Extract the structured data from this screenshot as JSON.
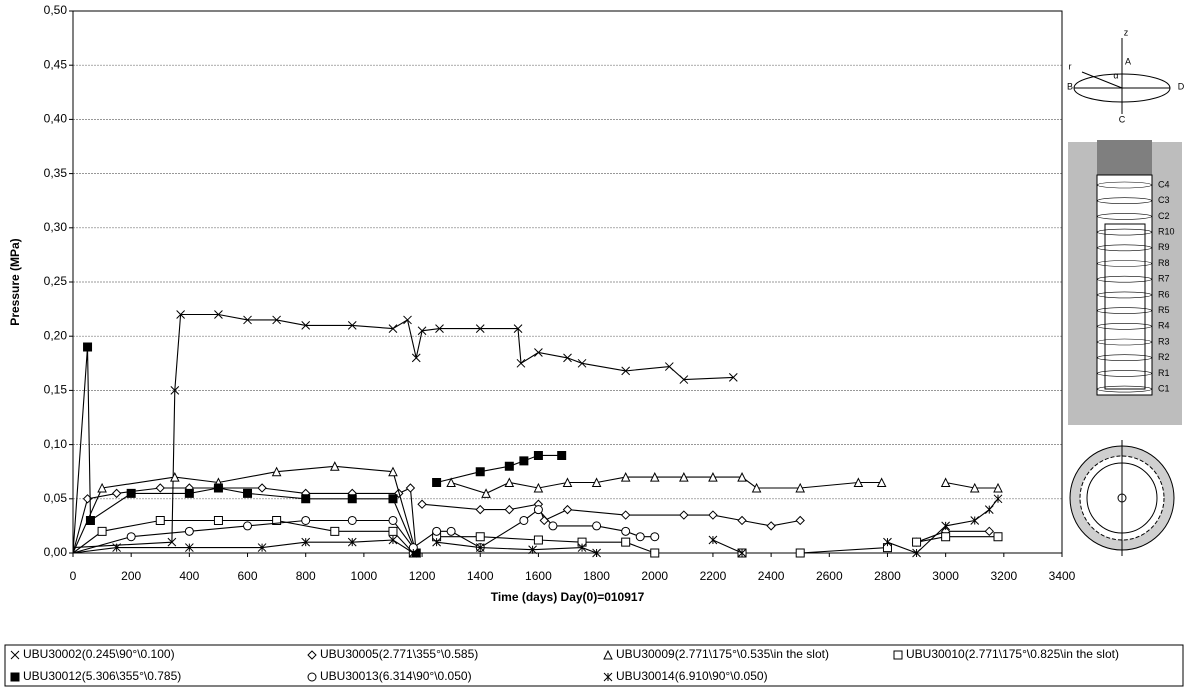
{
  "chart_data": {
    "type": "line",
    "xlabel": "Time  (days)  Day(0)=010917",
    "ylabel": "Pressure (MPa)",
    "xlim": [
      0,
      3400
    ],
    "ylim": [
      0,
      0.5
    ],
    "xticks": [
      0,
      200,
      400,
      600,
      800,
      1000,
      1200,
      1400,
      1600,
      1800,
      2000,
      2200,
      2400,
      2600,
      2800,
      3000,
      3200,
      3400
    ],
    "yticks": [
      {
        "value": 0,
        "label": "0,00"
      },
      {
        "value": 0.05,
        "label": "0,05"
      },
      {
        "value": 0.1,
        "label": "0,10"
      },
      {
        "value": 0.15,
        "label": "0,15"
      },
      {
        "value": 0.2,
        "label": "0,20"
      },
      {
        "value": 0.25,
        "label": "0,25"
      },
      {
        "value": 0.3,
        "label": "0,30"
      },
      {
        "value": 0.35,
        "label": "0,35"
      },
      {
        "value": 0.4,
        "label": "0,40"
      },
      {
        "value": 0.45,
        "label": "0,45"
      },
      {
        "value": 0.5,
        "label": "0,50"
      }
    ],
    "grid": true,
    "legend": "bottom",
    "series": [
      {
        "name": "UBU30002(0.245\\90°\\0.100)",
        "color": "#000000",
        "marker": "x",
        "x": [
          0,
          340,
          350,
          370,
          500,
          600,
          700,
          800,
          960,
          1100,
          1150,
          1180,
          1200,
          1260,
          1400,
          1530,
          1540,
          1600,
          1700,
          1750,
          1900,
          2050,
          2100,
          2270
        ],
        "values": [
          0.005,
          0.01,
          0.15,
          0.22,
          0.22,
          0.215,
          0.215,
          0.21,
          0.21,
          0.207,
          0.215,
          0.18,
          0.205,
          0.207,
          0.207,
          0.207,
          0.175,
          0.185,
          0.18,
          0.175,
          0.168,
          0.172,
          0.16,
          0.162
        ]
      },
      {
        "name": "UBU30005(2.771\\355°\\0.585)",
        "color": "#000000",
        "marker": "diamond",
        "x": [
          0,
          50,
          150,
          300,
          400,
          650,
          800,
          960,
          1120,
          1160,
          1180,
          null,
          1200,
          1400,
          1500,
          1600,
          1620,
          1700,
          1900,
          2100,
          2200,
          2300,
          2400,
          2500,
          null,
          2900,
          3000,
          3150
        ],
        "values": [
          0,
          0.05,
          0.055,
          0.06,
          0.06,
          0.06,
          0.055,
          0.055,
          0.055,
          0.06,
          0,
          null,
          0.045,
          0.04,
          0.04,
          0.045,
          0.03,
          0.04,
          0.035,
          0.035,
          0.035,
          0.03,
          0.025,
          0.03,
          null,
          0.01,
          0.02,
          0.02
        ]
      },
      {
        "name": "UBU30009(2.771\\175°\\0.535\\in the slot)",
        "color": "#000000",
        "marker": "triangle",
        "x": [
          0,
          100,
          350,
          500,
          700,
          900,
          1100,
          1180,
          null,
          1300,
          1420,
          1500,
          1600,
          1700,
          1800,
          1900,
          2000,
          2100,
          2200,
          2300,
          2350,
          2500,
          2700,
          2780,
          null,
          3000,
          3100,
          3180
        ],
        "values": [
          0,
          0.06,
          0.07,
          0.065,
          0.075,
          0.08,
          0.075,
          0,
          null,
          0.065,
          0.055,
          0.065,
          0.06,
          0.065,
          0.065,
          0.07,
          0.07,
          0.07,
          0.07,
          0.07,
          0.06,
          0.06,
          0.065,
          0.065,
          null,
          0.065,
          0.06,
          0.06
        ]
      },
      {
        "name": "UBU30010(2.771\\175°\\0.825\\in the slot)",
        "color": "#000000",
        "marker": "square",
        "x": [
          0,
          100,
          300,
          500,
          700,
          900,
          1100,
          1170,
          null,
          1250,
          1400,
          1600,
          1750,
          1900,
          2000,
          null,
          2300,
          2500,
          2800,
          null,
          2900,
          3000,
          3180
        ],
        "values": [
          0,
          0.02,
          0.03,
          0.03,
          0.03,
          0.02,
          0.02,
          0,
          null,
          0.015,
          0.015,
          0.012,
          0.01,
          0.01,
          0,
          null,
          0,
          0,
          0.005,
          null,
          0.01,
          0.015,
          0.015
        ]
      },
      {
        "name": "UBU30012(5.306\\355°\\0.785)",
        "color": "#000000",
        "marker": "filled-square",
        "x": [
          0,
          50,
          60,
          200,
          400,
          500,
          600,
          800,
          960,
          1100,
          1180,
          null,
          1250,
          1400,
          1500,
          1550,
          1600,
          1680
        ],
        "values": [
          0,
          0.19,
          0.03,
          0.055,
          0.055,
          0.06,
          0.055,
          0.05,
          0.05,
          0.05,
          0,
          null,
          0.065,
          0.075,
          0.08,
          0.085,
          0.09,
          0.09
        ]
      },
      {
        "name": "UBU30013(6.314\\90°\\0.050)",
        "color": "#000000",
        "marker": "circle",
        "x": [
          0,
          200,
          400,
          600,
          800,
          960,
          1100,
          1170,
          1250,
          1300,
          1400,
          1550,
          1600,
          1650,
          1800,
          1900,
          1950,
          2000
        ],
        "values": [
          0,
          0.015,
          0.02,
          0.025,
          0.03,
          0.03,
          0.03,
          0.005,
          0.02,
          0.02,
          0.005,
          0.03,
          0.04,
          0.025,
          0.025,
          0.02,
          0.015,
          0.015
        ]
      },
      {
        "name": "UBU30014(6.910\\90°\\0.050)",
        "color": "#000000",
        "marker": "star",
        "x": [
          0,
          150,
          400,
          650,
          800,
          960,
          1100,
          1170,
          null,
          1250,
          1400,
          1580,
          1750,
          1800,
          null,
          2200,
          2300,
          null,
          2800,
          2900,
          3000,
          3100,
          3150,
          3180
        ],
        "values": [
          0,
          0.005,
          0.005,
          0.005,
          0.01,
          0.01,
          0.012,
          0,
          null,
          0.01,
          0.005,
          0.003,
          0.005,
          0,
          null,
          0.012,
          0,
          null,
          0.01,
          0,
          0.025,
          0.03,
          0.04,
          0.05
        ]
      }
    ]
  },
  "diagram": {
    "axis_labels": [
      "z",
      "A",
      "B",
      "C",
      "D",
      "r",
      "α"
    ],
    "ring_labels": [
      "C4",
      "C3",
      "C2",
      "R10",
      "R9",
      "R8",
      "R7",
      "R6",
      "R5",
      "R4",
      "R3",
      "R2",
      "R1",
      "C1"
    ]
  }
}
